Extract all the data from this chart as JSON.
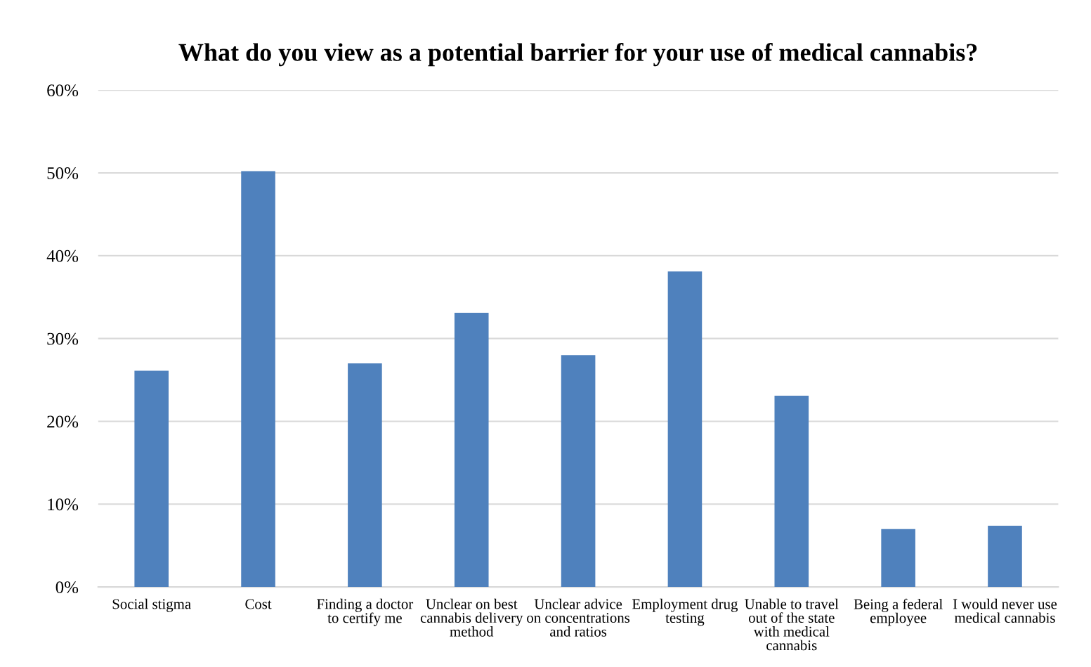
{
  "chart_data": {
    "type": "bar",
    "title": "What do you view as a potential barrier for your use of medical cannabis?",
    "categories": [
      "Social stigma",
      "Cost",
      "Finding a doctor\nto certify me",
      "Unclear on best\ncannabis delivery\nmethod",
      "Unclear advice\non concentrations\nand ratios",
      "Employment drug\ntesting",
      "Unable to travel\nout of the state\nwith medical\ncannabis",
      "Being a federal\nemployee",
      "I would never use\nmedical cannabis"
    ],
    "values": [
      26.1,
      50.2,
      27,
      33.1,
      28,
      38.1,
      23.1,
      7,
      7.4
    ],
    "color": "#4f81bd",
    "ylim": [
      0,
      60
    ],
    "yticks": [
      {
        "value": 0,
        "label": "0%"
      },
      {
        "value": 10,
        "label": "10%"
      },
      {
        "value": 20,
        "label": "20%"
      },
      {
        "value": 30,
        "label": "30%"
      },
      {
        "value": 40,
        "label": "40%"
      },
      {
        "value": 50,
        "label": "50%"
      },
      {
        "value": 60,
        "label": "60%"
      }
    ],
    "grid": "y"
  }
}
